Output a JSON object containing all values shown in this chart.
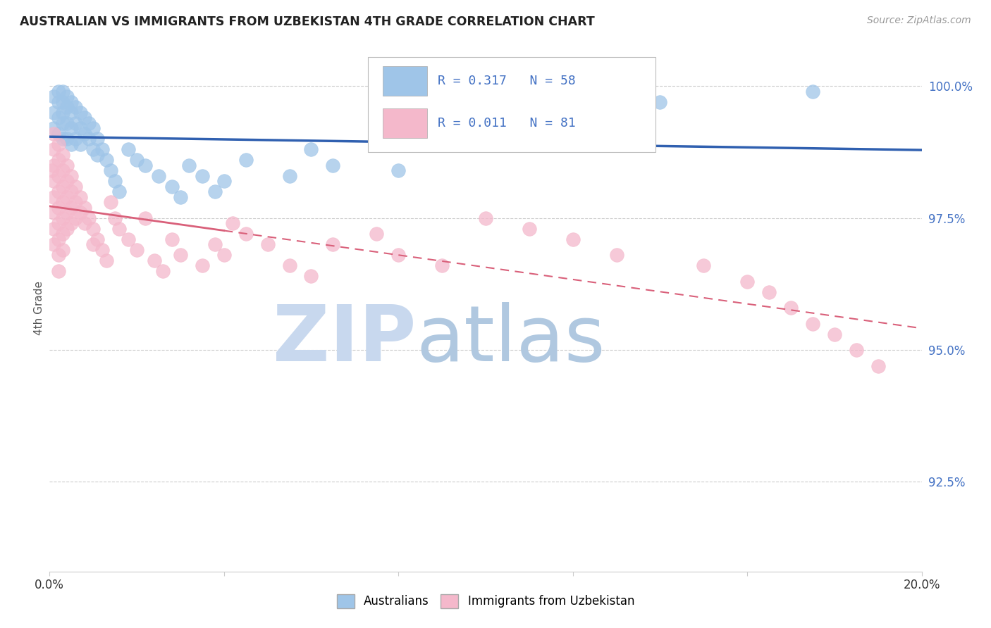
{
  "title": "AUSTRALIAN VS IMMIGRANTS FROM UZBEKISTAN 4TH GRADE CORRELATION CHART",
  "source": "Source: ZipAtlas.com",
  "ylabel": "4th Grade",
  "right_ytick_labels": [
    "100.0%",
    "97.5%",
    "95.0%",
    "92.5%"
  ],
  "right_ytick_values": [
    1.0,
    0.975,
    0.95,
    0.925
  ],
  "xlim": [
    0.0,
    0.2
  ],
  "ylim": [
    0.908,
    1.008
  ],
  "legend_r_australian": "R = 0.317",
  "legend_n_australian": "N = 58",
  "legend_r_uzbekistan": "R = 0.011",
  "legend_n_uzbekistan": "N = 81",
  "legend_label_australian": "Australians",
  "legend_label_uzbekistan": "Immigrants from Uzbekistan",
  "color_australian": "#9fc5e8",
  "color_uzbekistan": "#f4b8cb",
  "color_trend_australian": "#3060b0",
  "color_trend_uzbekistan": "#d9607a",
  "color_title": "#222222",
  "color_source": "#999999",
  "color_right_axis": "#4472c4",
  "color_grid": "#cccccc",
  "color_watermark_zip": "#c8d8ee",
  "color_watermark_atlas": "#b0c8e0",
  "aus_x": [
    0.001,
    0.001,
    0.001,
    0.002,
    0.002,
    0.002,
    0.002,
    0.003,
    0.003,
    0.003,
    0.003,
    0.003,
    0.004,
    0.004,
    0.004,
    0.004,
    0.005,
    0.005,
    0.005,
    0.005,
    0.006,
    0.006,
    0.006,
    0.007,
    0.007,
    0.007,
    0.008,
    0.008,
    0.009,
    0.009,
    0.01,
    0.01,
    0.011,
    0.011,
    0.012,
    0.013,
    0.014,
    0.015,
    0.016,
    0.018,
    0.02,
    0.022,
    0.025,
    0.028,
    0.03,
    0.032,
    0.035,
    0.038,
    0.04,
    0.045,
    0.055,
    0.06,
    0.065,
    0.08,
    0.095,
    0.115,
    0.14,
    0.175
  ],
  "aus_y": [
    0.998,
    0.995,
    0.992,
    0.999,
    0.997,
    0.994,
    0.991,
    0.999,
    0.997,
    0.995,
    0.993,
    0.99,
    0.998,
    0.996,
    0.993,
    0.99,
    0.997,
    0.995,
    0.992,
    0.989,
    0.996,
    0.993,
    0.99,
    0.995,
    0.992,
    0.989,
    0.994,
    0.991,
    0.993,
    0.99,
    0.992,
    0.988,
    0.99,
    0.987,
    0.988,
    0.986,
    0.984,
    0.982,
    0.98,
    0.988,
    0.986,
    0.985,
    0.983,
    0.981,
    0.979,
    0.985,
    0.983,
    0.98,
    0.982,
    0.986,
    0.983,
    0.988,
    0.985,
    0.984,
    0.99,
    0.993,
    0.997,
    0.999
  ],
  "uzb_x": [
    0.0005,
    0.001,
    0.001,
    0.001,
    0.001,
    0.001,
    0.001,
    0.001,
    0.001,
    0.002,
    0.002,
    0.002,
    0.002,
    0.002,
    0.002,
    0.002,
    0.002,
    0.002,
    0.003,
    0.003,
    0.003,
    0.003,
    0.003,
    0.003,
    0.003,
    0.004,
    0.004,
    0.004,
    0.004,
    0.004,
    0.005,
    0.005,
    0.005,
    0.005,
    0.006,
    0.006,
    0.006,
    0.007,
    0.007,
    0.008,
    0.008,
    0.009,
    0.01,
    0.01,
    0.011,
    0.012,
    0.013,
    0.014,
    0.015,
    0.016,
    0.018,
    0.02,
    0.022,
    0.024,
    0.026,
    0.028,
    0.03,
    0.035,
    0.038,
    0.04,
    0.042,
    0.045,
    0.05,
    0.055,
    0.06,
    0.065,
    0.075,
    0.08,
    0.09,
    0.1,
    0.11,
    0.12,
    0.13,
    0.15,
    0.16,
    0.165,
    0.17,
    0.175,
    0.18,
    0.185,
    0.19
  ],
  "uzb_y": [
    0.984,
    0.991,
    0.988,
    0.985,
    0.982,
    0.979,
    0.976,
    0.973,
    0.97,
    0.989,
    0.986,
    0.983,
    0.98,
    0.977,
    0.974,
    0.971,
    0.968,
    0.965,
    0.987,
    0.984,
    0.981,
    0.978,
    0.975,
    0.972,
    0.969,
    0.985,
    0.982,
    0.979,
    0.976,
    0.973,
    0.983,
    0.98,
    0.977,
    0.974,
    0.981,
    0.978,
    0.975,
    0.979,
    0.976,
    0.977,
    0.974,
    0.975,
    0.973,
    0.97,
    0.971,
    0.969,
    0.967,
    0.978,
    0.975,
    0.973,
    0.971,
    0.969,
    0.975,
    0.967,
    0.965,
    0.971,
    0.968,
    0.966,
    0.97,
    0.968,
    0.974,
    0.972,
    0.97,
    0.966,
    0.964,
    0.97,
    0.972,
    0.968,
    0.966,
    0.975,
    0.973,
    0.971,
    0.968,
    0.966,
    0.963,
    0.961,
    0.958,
    0.955,
    0.953,
    0.95,
    0.947
  ]
}
